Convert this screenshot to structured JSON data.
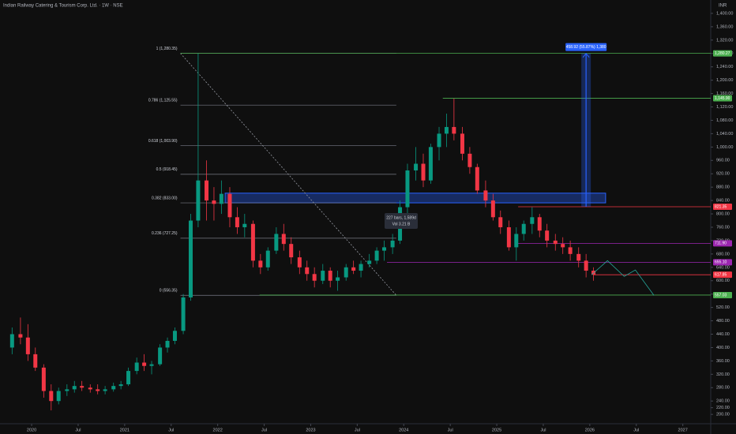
{
  "chart_data": {
    "type": "candlestick",
    "title": "Indian Railway Catering & Tourism Corp. Ltd. · 1W · NSE",
    "currency": "INR",
    "up_color": "#089981",
    "down_color": "#f23645",
    "xlim": [
      2019.66,
      2027.3
    ],
    "ylim": [
      172,
      1440
    ],
    "xticks": [
      2020,
      {
        "value": 2020.5,
        "label": "Jul"
      },
      2021,
      {
        "value": 2021.5,
        "label": "Jul"
      },
      2022,
      {
        "value": 2022.5,
        "label": "Jul"
      },
      2023,
      {
        "value": 2023.5,
        "label": "Jul"
      },
      2024,
      {
        "value": 2024.5,
        "label": "Jul"
      },
      2025,
      {
        "value": 2025.5,
        "label": "Jul"
      },
      2026,
      {
        "value": 2026.5,
        "label": "Jul"
      },
      2027
    ],
    "yticks": [
      {
        "value": 200,
        "label": "200.00"
      },
      {
        "value": 220,
        "label": "220.00"
      },
      {
        "value": 240,
        "label": "240.00"
      },
      {
        "value": 280,
        "label": "280.00"
      },
      {
        "value": 320,
        "label": "320.00"
      },
      {
        "value": 360,
        "label": "360.00"
      },
      {
        "value": 400,
        "label": "400.00"
      },
      {
        "value": 440,
        "label": "440.00"
      },
      {
        "value": 480,
        "label": "480.00"
      },
      {
        "value": 520,
        "label": "520.00"
      },
      {
        "value": 560,
        "label": "560.00"
      },
      {
        "value": 600,
        "label": "600.00"
      },
      {
        "value": 640,
        "label": "640.00"
      },
      {
        "value": 680,
        "label": "680.00"
      },
      {
        "value": 720,
        "label": "720.00"
      },
      {
        "value": 760,
        "label": "760.00"
      },
      {
        "value": 800,
        "label": "800.00"
      },
      {
        "value": 840,
        "label": "840.00"
      },
      {
        "value": 880,
        "label": "880.00"
      },
      {
        "value": 920,
        "label": "920.00"
      },
      {
        "value": 960,
        "label": "960.00"
      },
      {
        "value": 1000,
        "label": "1,000.00"
      },
      {
        "value": 1040,
        "label": "1,040.00"
      },
      {
        "value": 1080,
        "label": "1,080.00"
      },
      {
        "value": 1120,
        "label": "1,120.00"
      },
      {
        "value": 1160,
        "label": "1,160.00"
      },
      {
        "value": 1200,
        "label": "1,200.00"
      },
      {
        "value": 1240,
        "label": "1,240.00"
      },
      {
        "value": 1280,
        "label": "1,280.00"
      },
      {
        "value": 1320,
        "label": "1,320.00"
      },
      {
        "value": 1360,
        "label": "1,360.00"
      },
      {
        "value": 1400,
        "label": "1,400.00"
      }
    ],
    "candles": [
      [
        2019.79,
        400,
        460,
        380,
        440
      ],
      [
        2019.88,
        440,
        490,
        410,
        430
      ],
      [
        2019.96,
        430,
        470,
        360,
        380
      ],
      [
        2020.04,
        380,
        400,
        330,
        340
      ],
      [
        2020.13,
        340,
        350,
        250,
        270
      ],
      [
        2020.21,
        270,
        290,
        212,
        240
      ],
      [
        2020.29,
        240,
        280,
        230,
        270
      ],
      [
        2020.38,
        270,
        290,
        255,
        275
      ],
      [
        2020.46,
        275,
        300,
        265,
        285
      ],
      [
        2020.54,
        285,
        300,
        270,
        280
      ],
      [
        2020.63,
        280,
        290,
        265,
        275
      ],
      [
        2020.71,
        275,
        290,
        260,
        270
      ],
      [
        2020.79,
        270,
        285,
        260,
        275
      ],
      [
        2020.88,
        275,
        295,
        268,
        285
      ],
      [
        2020.96,
        285,
        300,
        275,
        290
      ],
      [
        2021.04,
        290,
        340,
        285,
        330
      ],
      [
        2021.13,
        330,
        370,
        320,
        355
      ],
      [
        2021.21,
        355,
        380,
        330,
        345
      ],
      [
        2021.29,
        345,
        360,
        320,
        350
      ],
      [
        2021.38,
        350,
        410,
        345,
        400
      ],
      [
        2021.46,
        400,
        430,
        385,
        420
      ],
      [
        2021.54,
        420,
        460,
        410,
        450
      ],
      [
        2021.63,
        450,
        560,
        440,
        550
      ],
      [
        2021.71,
        550,
        800,
        540,
        780
      ],
      [
        2021.79,
        780,
        1280,
        760,
        900
      ],
      [
        2021.88,
        900,
        960,
        780,
        840
      ],
      [
        2021.96,
        840,
        880,
        780,
        830
      ],
      [
        2022.04,
        830,
        900,
        800,
        860
      ],
      [
        2022.13,
        860,
        880,
        760,
        790
      ],
      [
        2022.21,
        790,
        820,
        740,
        760
      ],
      [
        2022.29,
        760,
        800,
        730,
        770
      ],
      [
        2022.38,
        770,
        780,
        640,
        660
      ],
      [
        2022.46,
        660,
        680,
        620,
        640
      ],
      [
        2022.54,
        640,
        700,
        630,
        690
      ],
      [
        2022.63,
        690,
        760,
        680,
        740
      ],
      [
        2022.71,
        740,
        770,
        690,
        710
      ],
      [
        2022.79,
        710,
        730,
        650,
        670
      ],
      [
        2022.88,
        670,
        690,
        620,
        640
      ],
      [
        2022.96,
        640,
        660,
        600,
        620
      ],
      [
        2023.04,
        620,
        640,
        580,
        600
      ],
      [
        2023.13,
        600,
        650,
        590,
        630
      ],
      [
        2023.21,
        630,
        640,
        580,
        600
      ],
      [
        2023.29,
        600,
        630,
        570,
        610
      ],
      [
        2023.38,
        610,
        650,
        600,
        640
      ],
      [
        2023.46,
        640,
        660,
        620,
        630
      ],
      [
        2023.54,
        630,
        660,
        610,
        650
      ],
      [
        2023.63,
        650,
        680,
        640,
        660
      ],
      [
        2023.71,
        660,
        700,
        650,
        690
      ],
      [
        2023.79,
        690,
        720,
        660,
        700
      ],
      [
        2023.88,
        700,
        740,
        680,
        720
      ],
      [
        2023.96,
        720,
        840,
        710,
        820
      ],
      [
        2024.04,
        820,
        950,
        800,
        930
      ],
      [
        2024.13,
        930,
        1000,
        900,
        950
      ],
      [
        2024.21,
        950,
        980,
        880,
        900
      ],
      [
        2024.29,
        900,
        1010,
        890,
        1000
      ],
      [
        2024.38,
        1000,
        1060,
        960,
        1040
      ],
      [
        2024.46,
        1040,
        1100,
        1000,
        1060
      ],
      [
        2024.54,
        1060,
        1145,
        1020,
        1040
      ],
      [
        2024.63,
        1040,
        1060,
        960,
        980
      ],
      [
        2024.71,
        980,
        1000,
        920,
        940
      ],
      [
        2024.79,
        940,
        950,
        860,
        870
      ],
      [
        2024.88,
        870,
        900,
        820,
        840
      ],
      [
        2024.96,
        840,
        860,
        780,
        790
      ],
      [
        2025.04,
        790,
        810,
        740,
        760
      ],
      [
        2025.13,
        760,
        780,
        690,
        700
      ],
      [
        2025.21,
        700,
        760,
        660,
        740
      ],
      [
        2025.29,
        740,
        780,
        720,
        770
      ],
      [
        2025.38,
        770,
        820,
        740,
        790
      ],
      [
        2025.46,
        790,
        800,
        730,
        750
      ],
      [
        2025.54,
        750,
        770,
        700,
        720
      ],
      [
        2025.63,
        720,
        740,
        690,
        710
      ],
      [
        2025.71,
        710,
        730,
        680,
        700
      ],
      [
        2025.79,
        700,
        720,
        660,
        680
      ],
      [
        2025.88,
        680,
        700,
        640,
        660
      ],
      [
        2025.96,
        660,
        680,
        610,
        630
      ],
      [
        2026.04,
        630,
        640,
        600,
        617.85
      ]
    ],
    "levels": [
      {
        "value": 1280.27,
        "label": "1,280.27",
        "color": "#4caf50",
        "from": 2021.6
      },
      {
        "value": 1145.9,
        "label": "1,145.90",
        "color": "#4caf50",
        "from": 2024.42
      },
      {
        "value": 821.35,
        "label": "821.35",
        "color": "#f23645",
        "from": 2025.23
      },
      {
        "value": 711.9,
        "label": "711.90",
        "color": "#9c27b0",
        "from": 2025.2
      },
      {
        "value": 655.1,
        "label": "655.10",
        "color": "#9c27b0",
        "from": 2023.82
      },
      {
        "value": 617.85,
        "label": "617.85",
        "color": "#f23645",
        "from": 2026.04
      },
      {
        "value": 557.03,
        "label": "557.03",
        "color": "#4caf50",
        "from": 2022.45
      }
    ],
    "fib": {
      "from": 2021.6,
      "to": 2023.92,
      "color": "#787b86",
      "levels": [
        {
          "value": 1280.35,
          "label": "1 (1,280.35)"
        },
        {
          "value": 1125.55,
          "label": "0.786 (1,125.55)"
        },
        {
          "value": 1003.9,
          "label": "0.618 (1,003.90)"
        },
        {
          "value": 918.45,
          "label": "0.5 (918.45)"
        },
        {
          "value": 833.0,
          "label": "0.382 (833.00)"
        },
        {
          "value": 727.25,
          "label": "0.236 (727.25)"
        },
        {
          "value": 556.35,
          "label": "0 (556.35)"
        }
      ]
    },
    "trend": {
      "x": [
        2021.6,
        2023.92
      ],
      "y": [
        1280.35,
        556.35
      ]
    },
    "zone": {
      "x": [
        2022.08,
        2026.17
      ],
      "y": [
        833,
        862
      ],
      "color": "#2962ff"
    },
    "measure": {
      "x": 2025.96,
      "y": [
        821.35,
        1280.27
      ],
      "label": "458.92 (55.87%) 1,380",
      "color": "#2962ff"
    },
    "projection": {
      "x": [
        2026.02,
        2026.19,
        2026.37,
        2026.49,
        2026.69
      ],
      "y": [
        617.85,
        660,
        613,
        632,
        556
      ],
      "color": "#26a69a"
    },
    "tooltip": [
      "227 bars, 1,589d",
      "Vol 3.21 B"
    ]
  }
}
